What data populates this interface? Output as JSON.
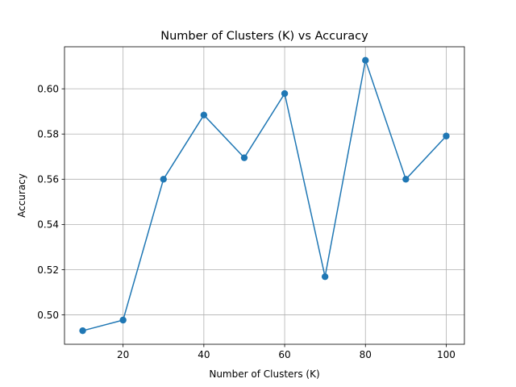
{
  "chart_data": {
    "type": "line",
    "title": "Number of Clusters (K) vs Accuracy",
    "xlabel": "Number of Clusters (K)",
    "ylabel": "Accuracy",
    "x": [
      10,
      20,
      30,
      40,
      50,
      60,
      70,
      80,
      90,
      100
    ],
    "series": [
      {
        "values": [
          0.493,
          0.4977,
          0.56,
          0.5884,
          0.5695,
          0.5979,
          0.5169,
          0.6126,
          0.56,
          0.5791
        ],
        "color": "#1f77b4",
        "marker": "circle"
      }
    ],
    "xlim": [
      5.5,
      104.5
    ],
    "ylim": [
      0.487,
      0.6186
    ],
    "xticks": [
      20,
      40,
      60,
      80,
      100
    ],
    "xtick_labels": [
      "20",
      "40",
      "60",
      "80",
      "100"
    ],
    "yticks": [
      0.5,
      0.52,
      0.54,
      0.56,
      0.58,
      0.6
    ],
    "ytick_labels": [
      "0.50",
      "0.52",
      "0.54",
      "0.56",
      "0.58",
      "0.60"
    ],
    "grid": true,
    "legend": false
  }
}
